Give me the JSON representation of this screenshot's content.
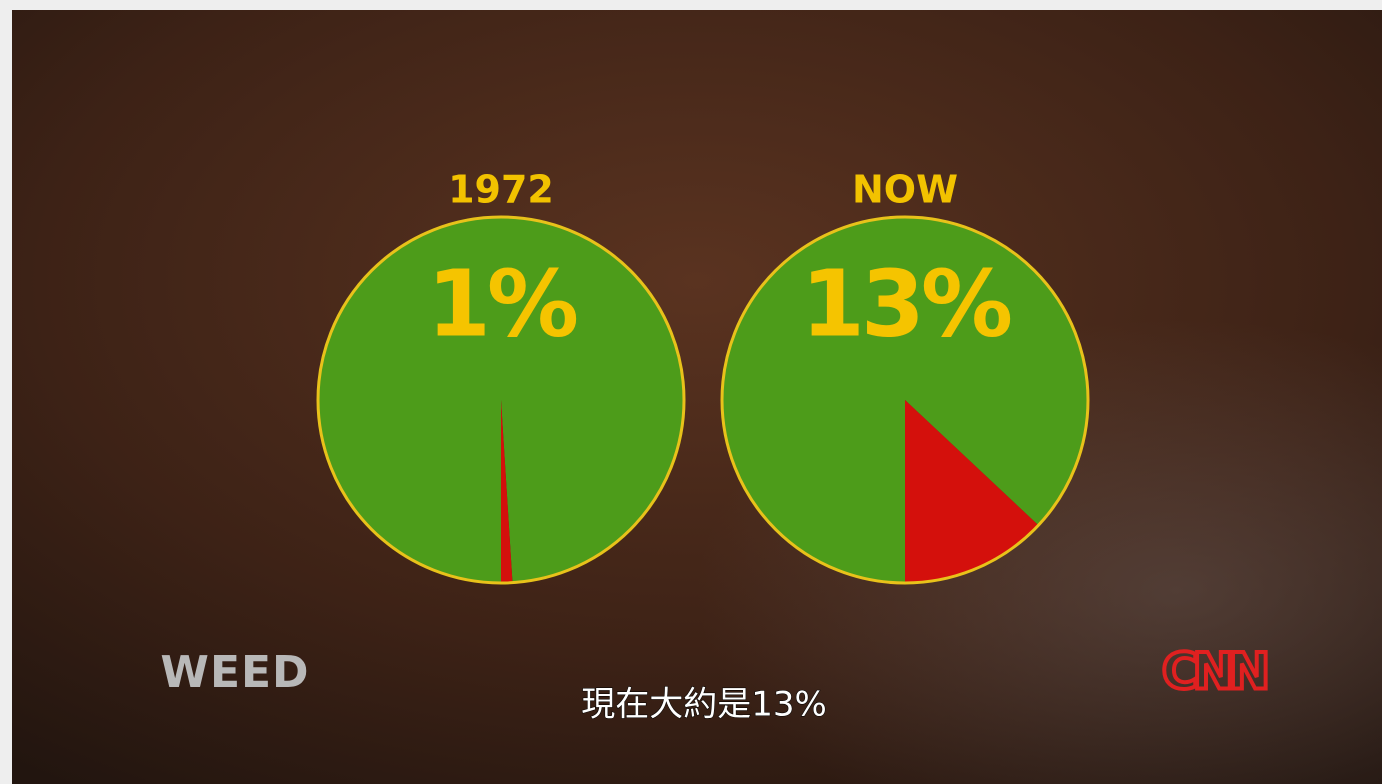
{
  "show": "WEED",
  "logo": "CNN",
  "caption": "現在大約是13%",
  "chart_data": [
    {
      "type": "pie",
      "title": "1972",
      "values": [
        1,
        99
      ],
      "value_labels": [
        "1%",
        null
      ],
      "colors": [
        "#d4100c",
        "#4d9c1a"
      ]
    },
    {
      "type": "pie",
      "title": "NOW",
      "values": [
        13,
        87
      ],
      "value_labels": [
        "13%",
        null
      ],
      "colors": [
        "#d4100c",
        "#4d9c1a"
      ]
    }
  ]
}
